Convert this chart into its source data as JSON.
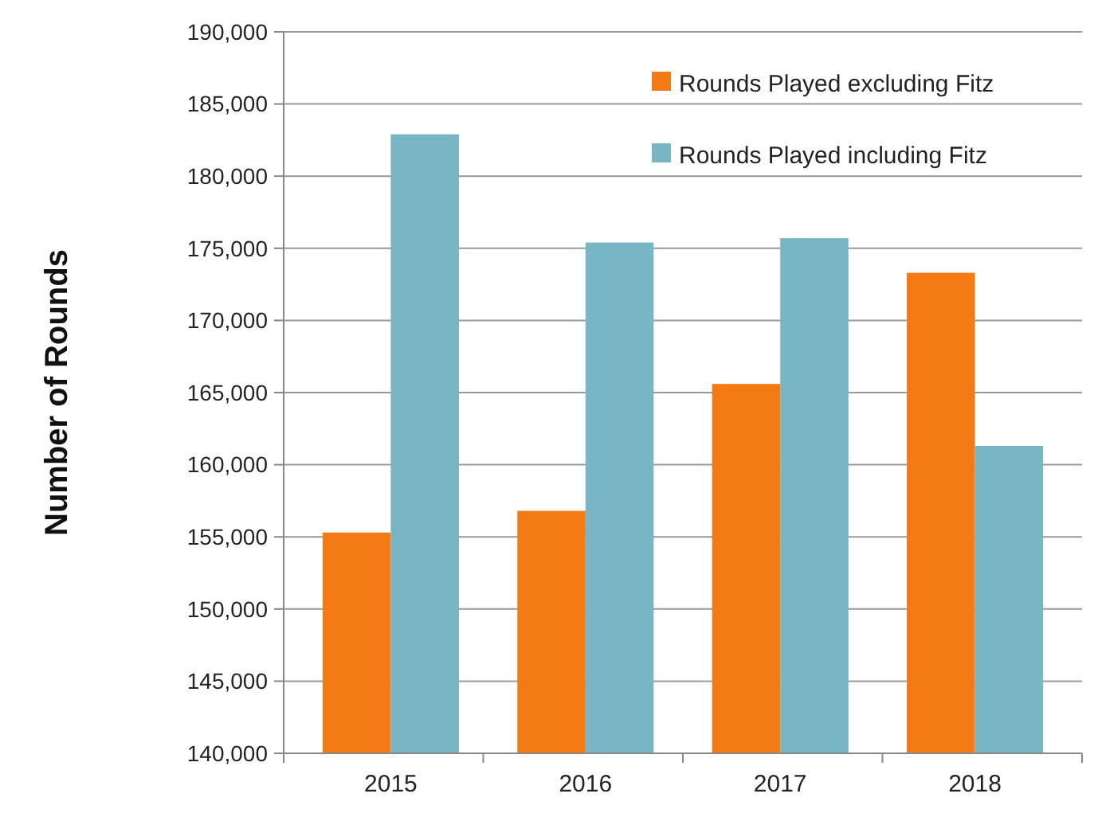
{
  "chart_data": {
    "type": "bar",
    "ylabel": "Number of Rounds",
    "categories": [
      "2015",
      "2016",
      "2017",
      "2018"
    ],
    "series": [
      {
        "name": "Rounds Played excluding Fitz",
        "color": "#f47a16",
        "values": [
          155300,
          156800,
          165600,
          173300
        ]
      },
      {
        "name": "Rounds Played including Fitz",
        "color": "#77b6c2",
        "values": [
          182900,
          175400,
          175700,
          161300
        ]
      }
    ],
    "ylim": [
      140000,
      190000
    ],
    "yticks": [
      {
        "value": 140000,
        "label": "140,000"
      },
      {
        "value": 145000,
        "label": "145,000"
      },
      {
        "value": 150000,
        "label": "150,000"
      },
      {
        "value": 155000,
        "label": "155,000"
      },
      {
        "value": 160000,
        "label": "160,000"
      },
      {
        "value": 165000,
        "label": "165,000"
      },
      {
        "value": 170000,
        "label": "170,000"
      },
      {
        "value": 175000,
        "label": "175,000"
      },
      {
        "value": 180000,
        "label": "180,000"
      },
      {
        "value": 185000,
        "label": "185,000"
      },
      {
        "value": 190000,
        "label": "190,000"
      }
    ],
    "grid": "y",
    "legend": "top right"
  }
}
